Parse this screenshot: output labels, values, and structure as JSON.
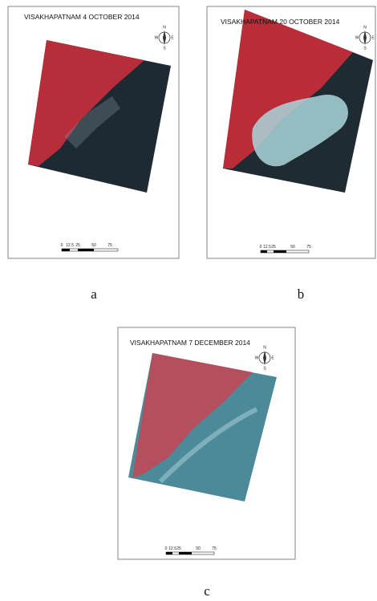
{
  "panels": [
    {
      "title": "VISAKHAPATNAM 4 OCTOBER 2014",
      "label": "a",
      "scale_labels": [
        "0",
        "12.5",
        "25",
        "50",
        "75"
      ],
      "compass": [
        "N",
        "E",
        "S",
        "W"
      ]
    },
    {
      "title": "VISAKHAPATNAM 20 OCTOBER 2014",
      "label": "b",
      "scale_labels": [
        "0",
        "12.5",
        "25",
        "50",
        "75"
      ],
      "compass": [
        "N",
        "E",
        "S",
        "W"
      ]
    },
    {
      "title": "VISAKHAPATNAM 7 DECEMBER 2014",
      "label": "c",
      "scale_labels": [
        "0",
        "12.5",
        "25",
        "50",
        "75"
      ],
      "compass": [
        "N",
        "E",
        "S",
        "W"
      ]
    }
  ]
}
